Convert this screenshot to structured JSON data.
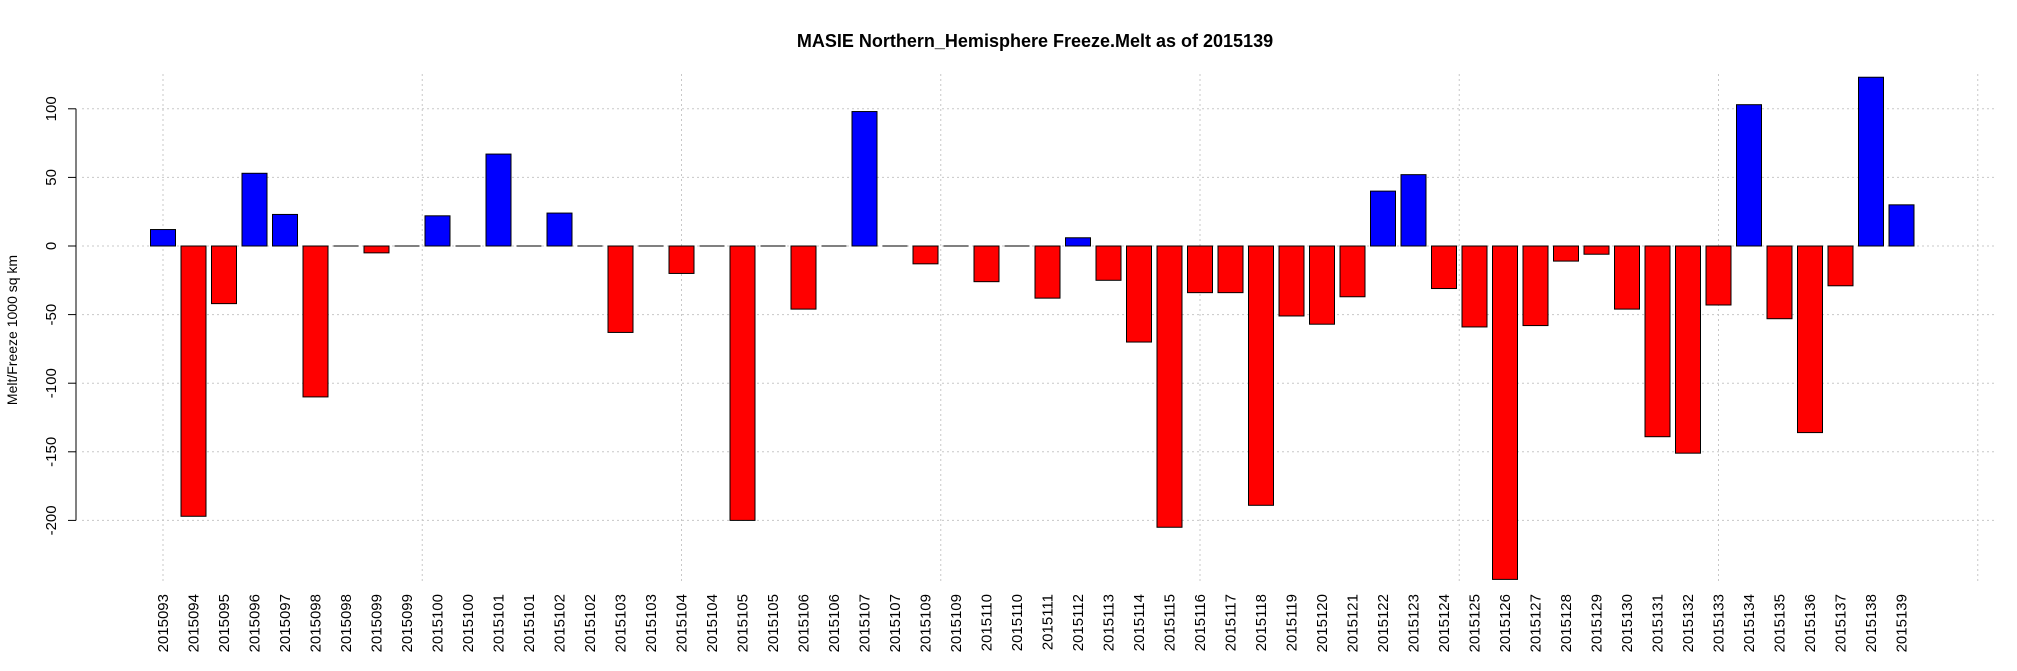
{
  "chart_data": {
    "type": "bar",
    "title": "MASIE Northern_Hemisphere Freeze.Melt as of 2015139",
    "xlabel": "",
    "ylabel": "Melt/Freeze 1000 sq km",
    "ylim": [
      -245,
      125
    ],
    "y_ticks": [
      100,
      50,
      0,
      -50,
      -100,
      -150,
      -200
    ],
    "grid": true,
    "colors": {
      "positive": "#0000ff",
      "negative": "#ff0000",
      "grid": "#c8c8c8"
    },
    "categories": [
      "2015093",
      "2015094",
      "2015095",
      "2015096",
      "2015097",
      "2015098",
      "2015098",
      "2015099",
      "2015099",
      "2015100",
      "2015100",
      "2015101",
      "2015101",
      "2015102",
      "2015102",
      "2015103",
      "2015103",
      "2015104",
      "2015104",
      "2015105",
      "2015105",
      "2015106",
      "2015106",
      "2015107",
      "2015107",
      "2015109",
      "2015109",
      "2015110",
      "2015110",
      "2015111",
      "2015112",
      "2015113",
      "2015114",
      "2015115",
      "2015116",
      "2015117",
      "2015118",
      "2015119",
      "2015120",
      "2015121",
      "2015122",
      "2015123",
      "2015124",
      "2015125",
      "2015126",
      "2015127",
      "2015128",
      "2015129",
      "2015130",
      "2015131",
      "2015132",
      "2015133",
      "2015134",
      "2015135",
      "2015136",
      "2015137",
      "2015138",
      "2015139"
    ],
    "values": [
      12,
      -197,
      -42,
      53,
      23,
      -110,
      0,
      -5,
      0,
      22,
      0,
      67,
      0,
      24,
      0,
      -63,
      0,
      -20,
      0,
      -200,
      0,
      -46,
      0,
      98,
      0,
      -13,
      0,
      -26,
      0,
      -38,
      6,
      -25,
      -70,
      -205,
      -34,
      -34,
      -189,
      -51,
      -57,
      -37,
      40,
      52,
      -31,
      -59,
      -243,
      -58,
      -11,
      -6,
      -46,
      -139,
      -151,
      -43,
      103,
      -53,
      -136,
      -29,
      123,
      30
    ]
  }
}
